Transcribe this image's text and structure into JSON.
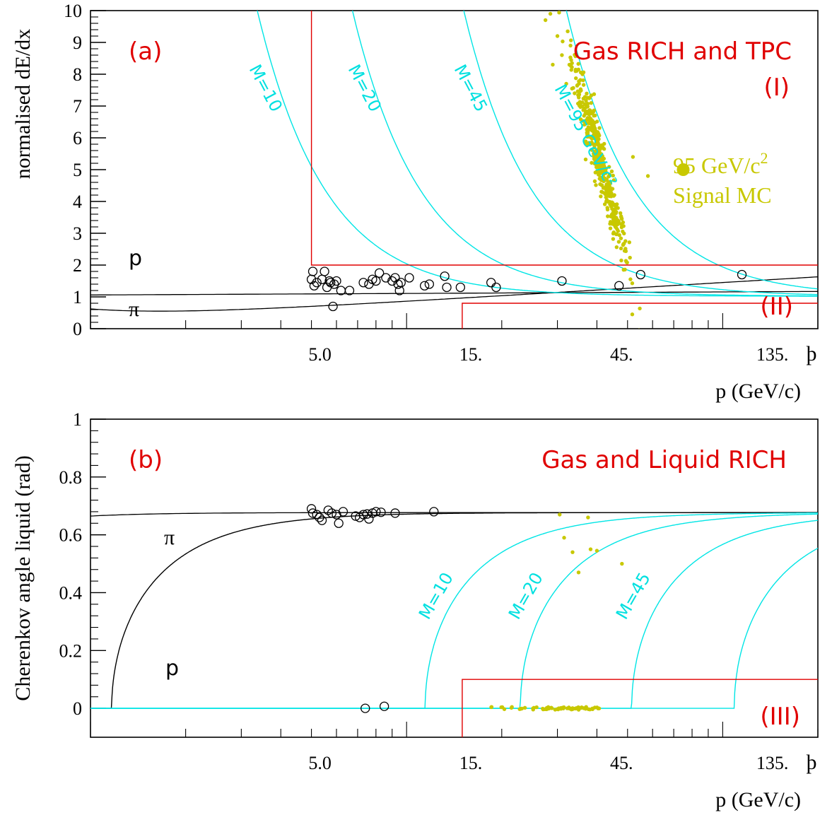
{
  "colors": {
    "cyan": "#00e5e5",
    "red": "#e00000",
    "olive": "#c8c800",
    "black": "#000000"
  },
  "chart_data": [
    {
      "type": "scatter",
      "panel": "a",
      "panel_label": "(a)",
      "title": "Gas RICH and TPC",
      "region_labels": [
        "(I)",
        "(II)"
      ],
      "xlabel": "p (GeV/c)",
      "ylabel": "normalised dE/dx",
      "x_scale": "log",
      "xlim": [
        1.0,
        200
      ],
      "ylim": [
        0,
        10
      ],
      "y_ticks": [
        "0",
        "1",
        "2",
        "3",
        "4",
        "5",
        "6",
        "7",
        "8",
        "9",
        "10"
      ],
      "x_tick_labels": [
        {
          "value": 5.0,
          "label": "5.0"
        },
        {
          "value": 15,
          "label": "15."
        },
        {
          "value": 45,
          "label": "45."
        },
        {
          "value": 135,
          "label": "135."
        }
      ],
      "x_end_label": "þ",
      "particle_labels": {
        "proton": "p",
        "pion": "π"
      },
      "mass_curve_labels": [
        "M=10",
        "M=20",
        "M=45",
        "M=95 GeV/c²"
      ],
      "mass_curves": [
        10,
        20,
        45,
        95
      ],
      "region_I": {
        "x_min": 5.0,
        "y_min": 2.0
      },
      "region_II": {
        "x_min": 15.0,
        "y_max": 0.8
      },
      "legend": {
        "label": "95 GeV/c",
        "superscript": "2",
        "label2": "Signal MC"
      },
      "data_points": [
        [
          5.0,
          1.55
        ],
        [
          5.05,
          1.8
        ],
        [
          5.1,
          1.35
        ],
        [
          5.2,
          1.45
        ],
        [
          5.4,
          1.55
        ],
        [
          5.5,
          1.8
        ],
        [
          5.6,
          1.3
        ],
        [
          5.7,
          1.5
        ],
        [
          5.75,
          1.45
        ],
        [
          5.9,
          1.4
        ],
        [
          6.0,
          1.5
        ],
        [
          5.85,
          0.7
        ],
        [
          6.2,
          1.2
        ],
        [
          6.6,
          1.2
        ],
        [
          7.3,
          1.45
        ],
        [
          7.6,
          1.4
        ],
        [
          7.8,
          1.55
        ],
        [
          8.0,
          1.5
        ],
        [
          8.2,
          1.75
        ],
        [
          8.6,
          1.6
        ],
        [
          9.0,
          1.5
        ],
        [
          9.2,
          1.6
        ],
        [
          9.4,
          1.4
        ],
        [
          9.5,
          1.2
        ],
        [
          9.6,
          1.45
        ],
        [
          10.2,
          1.6
        ],
        [
          11.4,
          1.35
        ],
        [
          11.8,
          1.4
        ],
        [
          13.2,
          1.65
        ],
        [
          13.4,
          1.3
        ],
        [
          14.8,
          1.3
        ],
        [
          18.5,
          1.45
        ],
        [
          19.2,
          1.3
        ],
        [
          31,
          1.5
        ],
        [
          47,
          1.35
        ],
        [
          55,
          1.7
        ],
        [
          115,
          1.7
        ]
      ],
      "signal_sample": {
        "count": 420,
        "center": [
          41,
          5.2
        ],
        "note": "dense cluster of simulated signal tracks"
      },
      "legend_marker_x": 75,
      "legend_marker_y": 5.0
    },
    {
      "type": "scatter",
      "panel": "b",
      "panel_label": "(b)",
      "title": "Gas and Liquid RICH",
      "region_labels": [
        "(III)"
      ],
      "xlabel": "p (GeV/c)",
      "ylabel": "Cherenkov angle liquid (rad)",
      "x_scale": "log",
      "xlim": [
        1.0,
        200
      ],
      "ylim": [
        -0.1,
        1.0
      ],
      "y_ticks": [
        "0",
        "0.2",
        "0.4",
        "0.6",
        "0.8",
        "1"
      ],
      "x_tick_labels": [
        {
          "value": 5.0,
          "label": "5.0"
        },
        {
          "value": 15,
          "label": "15."
        },
        {
          "value": 45,
          "label": "45."
        },
        {
          "value": 135,
          "label": "135."
        }
      ],
      "x_end_label": "þ",
      "particle_labels": {
        "proton": "p",
        "pion": "π"
      },
      "mass_curve_labels": [
        "M=10",
        "M=20",
        "M=45"
      ],
      "mass_curves": [
        10,
        20,
        45,
        95
      ],
      "region_III": {
        "x_min": 15.0,
        "y_max": 0.1
      },
      "data_points": [
        [
          5.0,
          0.69
        ],
        [
          5.05,
          0.675
        ],
        [
          5.2,
          0.67
        ],
        [
          5.3,
          0.66
        ],
        [
          5.4,
          0.65
        ],
        [
          5.65,
          0.685
        ],
        [
          5.8,
          0.675
        ],
        [
          6.0,
          0.67
        ],
        [
          6.1,
          0.64
        ],
        [
          6.3,
          0.68
        ],
        [
          6.9,
          0.665
        ],
        [
          7.1,
          0.66
        ],
        [
          7.3,
          0.67
        ],
        [
          7.5,
          0.672
        ],
        [
          7.6,
          0.655
        ],
        [
          7.8,
          0.675
        ],
        [
          8.0,
          0.68
        ],
        [
          8.3,
          0.678
        ],
        [
          9.2,
          0.675
        ],
        [
          12.2,
          0.68
        ],
        [
          7.4,
          0.0
        ],
        [
          8.5,
          0.007
        ]
      ],
      "signal_points": [
        [
          30.5,
          0.67
        ],
        [
          31.5,
          0.59
        ],
        [
          33.5,
          0.54
        ],
        [
          35,
          0.47
        ],
        [
          37.5,
          0.66
        ],
        [
          38.2,
          0.55
        ],
        [
          40,
          0.545
        ],
        [
          48,
          0.5
        ]
      ],
      "signal_points_zero_range": [
        18,
        48
      ]
    }
  ]
}
